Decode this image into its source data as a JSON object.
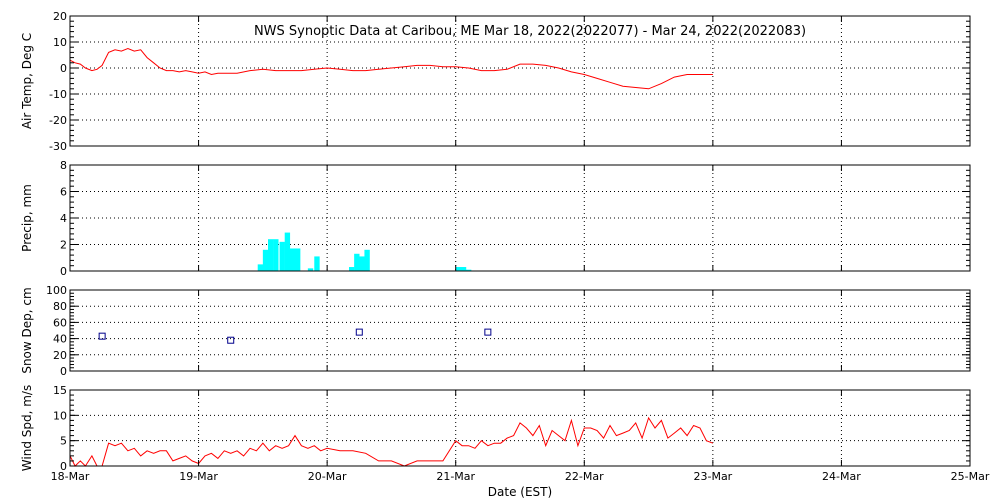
{
  "title": "NWS Synoptic Data at Caribou, ME   Mar 18, 2022(2022077) - Mar 24, 2022(2022083)",
  "xlabel": "Date (EST)",
  "x_ticks": [
    "18-Mar",
    "19-Mar",
    "20-Mar",
    "21-Mar",
    "22-Mar",
    "23-Mar",
    "24-Mar",
    "25-Mar"
  ],
  "colors": {
    "temp": "#ff0000",
    "precip": "#00ffff",
    "snow": "#00008b",
    "wind": "#ff0000"
  },
  "chart_data": [
    {
      "type": "line",
      "ylabel": "Air Temp, Deg C",
      "ylim": [
        -30,
        20
      ],
      "y_ticks": [
        -30,
        -20,
        -10,
        0,
        10,
        20
      ],
      "xlim": [
        0,
        7
      ],
      "grid": true,
      "series": [
        {
          "x": [
            0,
            0.04,
            0.08,
            0.12,
            0.17,
            0.21,
            0.25,
            0.3,
            0.35,
            0.4,
            0.45,
            0.5,
            0.55,
            0.6,
            0.65,
            0.7,
            0.75,
            0.8,
            0.85,
            0.9,
            0.95,
            1.0,
            1.05,
            1.1,
            1.15,
            1.2,
            1.3,
            1.4,
            1.5,
            1.6,
            1.7,
            1.8,
            1.9,
            2.0,
            2.1,
            2.2,
            2.3,
            2.4,
            2.5,
            2.6,
            2.7,
            2.8,
            2.9,
            3.0,
            3.1,
            3.2,
            3.3,
            3.4,
            3.5,
            3.6,
            3.7,
            3.8,
            3.9,
            4.0,
            4.1,
            4.2,
            4.3,
            4.4,
            4.5,
            4.6,
            4.7,
            4.8,
            4.9,
            5.0
          ],
          "y": [
            3,
            2,
            1.5,
            0,
            -1,
            -0.5,
            1,
            6,
            7,
            6.5,
            7.5,
            6.5,
            7,
            4,
            2,
            0,
            -1,
            -1,
            -1.5,
            -1,
            -1.5,
            -2,
            -1.5,
            -2.5,
            -2,
            -2,
            -2,
            -1,
            -0.5,
            -1,
            -1,
            -1,
            -0.5,
            0,
            -0.5,
            -1,
            -1,
            -0.5,
            0,
            0.5,
            1,
            1,
            0.5,
            0.5,
            0,
            -1,
            -1,
            -0.5,
            1.5,
            1.5,
            1,
            0,
            -1.5,
            -2.5,
            -4,
            -5.5,
            -7,
            -7.5,
            -8,
            -6,
            -3.5,
            -2.5,
            -2.5,
            -2.5
          ]
        }
      ]
    },
    {
      "type": "bar",
      "ylabel": "Precip, mm",
      "ylim": [
        0,
        8
      ],
      "y_ticks": [
        0,
        2,
        4,
        6,
        8
      ],
      "xlim": [
        0,
        7
      ],
      "grid": true,
      "bar_width": 0.0417,
      "series": [
        {
          "x": [
            1.46,
            1.5,
            1.54,
            1.58,
            1.63,
            1.67,
            1.71,
            1.75,
            1.85,
            1.9,
            2.17,
            2.21,
            2.25,
            2.29,
            3.0,
            3.04,
            3.08
          ],
          "values": [
            0.5,
            1.6,
            2.4,
            2.4,
            2.2,
            2.9,
            1.7,
            1.7,
            0.2,
            1.1,
            0.3,
            1.3,
            1.1,
            1.6,
            0.3,
            0.3,
            0.1
          ]
        }
      ]
    },
    {
      "type": "scatter",
      "ylabel": "Snow Dep, cm",
      "ylim": [
        0,
        100
      ],
      "y_ticks": [
        0,
        20,
        40,
        60,
        80,
        100
      ],
      "xlim": [
        0,
        7
      ],
      "grid": true,
      "series": [
        {
          "x": [
            0.25,
            1.25,
            2.25,
            3.25
          ],
          "y": [
            43,
            38,
            48,
            48
          ]
        }
      ]
    },
    {
      "type": "line",
      "ylabel": "Wind Spd, m/s",
      "ylim": [
        0,
        15
      ],
      "y_ticks": [
        0,
        5,
        10,
        15
      ],
      "xlim": [
        0,
        7
      ],
      "grid": true,
      "series": [
        {
          "x": [
            0,
            0.04,
            0.08,
            0.12,
            0.17,
            0.21,
            0.25,
            0.3,
            0.35,
            0.4,
            0.45,
            0.5,
            0.55,
            0.6,
            0.65,
            0.7,
            0.75,
            0.8,
            0.85,
            0.9,
            0.95,
            1.0,
            1.05,
            1.1,
            1.15,
            1.2,
            1.25,
            1.3,
            1.35,
            1.4,
            1.45,
            1.5,
            1.55,
            1.6,
            1.65,
            1.7,
            1.75,
            1.8,
            1.85,
            1.9,
            1.95,
            2.0,
            2.1,
            2.2,
            2.3,
            2.4,
            2.5,
            2.6,
            2.7,
            2.8,
            2.9,
            3.0,
            3.05,
            3.1,
            3.15,
            3.2,
            3.25,
            3.3,
            3.35,
            3.4,
            3.45,
            3.5,
            3.55,
            3.6,
            3.65,
            3.7,
            3.75,
            3.8,
            3.85,
            3.9,
            3.95,
            4.0,
            4.05,
            4.1,
            4.15,
            4.2,
            4.25,
            4.3,
            4.35,
            4.4,
            4.45,
            4.5,
            4.55,
            4.6,
            4.65,
            4.7,
            4.75,
            4.8,
            4.85,
            4.9,
            4.95,
            5.0
          ],
          "y": [
            2,
            0,
            1,
            0,
            2,
            0,
            0,
            4.5,
            4,
            4.5,
            3,
            3.5,
            2,
            3,
            2.5,
            3,
            3,
            1,
            1.5,
            2,
            1,
            0.5,
            2,
            2.5,
            1.5,
            3,
            2.5,
            3,
            2,
            3.5,
            3,
            4.5,
            3,
            4,
            3.5,
            4,
            6,
            4,
            3.5,
            4,
            3,
            3.5,
            3,
            3,
            2.5,
            1,
            1,
            0,
            1,
            1,
            1,
            5,
            4,
            4,
            3.5,
            5,
            4,
            4.5,
            4.5,
            5.5,
            6,
            8.5,
            7.5,
            6,
            8,
            4,
            7,
            6,
            5,
            9,
            4,
            7.5,
            7.5,
            7,
            5.5,
            8,
            6,
            6.5,
            7,
            8.5,
            5.5,
            9.5,
            7.5,
            9,
            5.5,
            6.5,
            7.5,
            6,
            8,
            7.5,
            5,
            4.5
          ]
        }
      ]
    }
  ]
}
